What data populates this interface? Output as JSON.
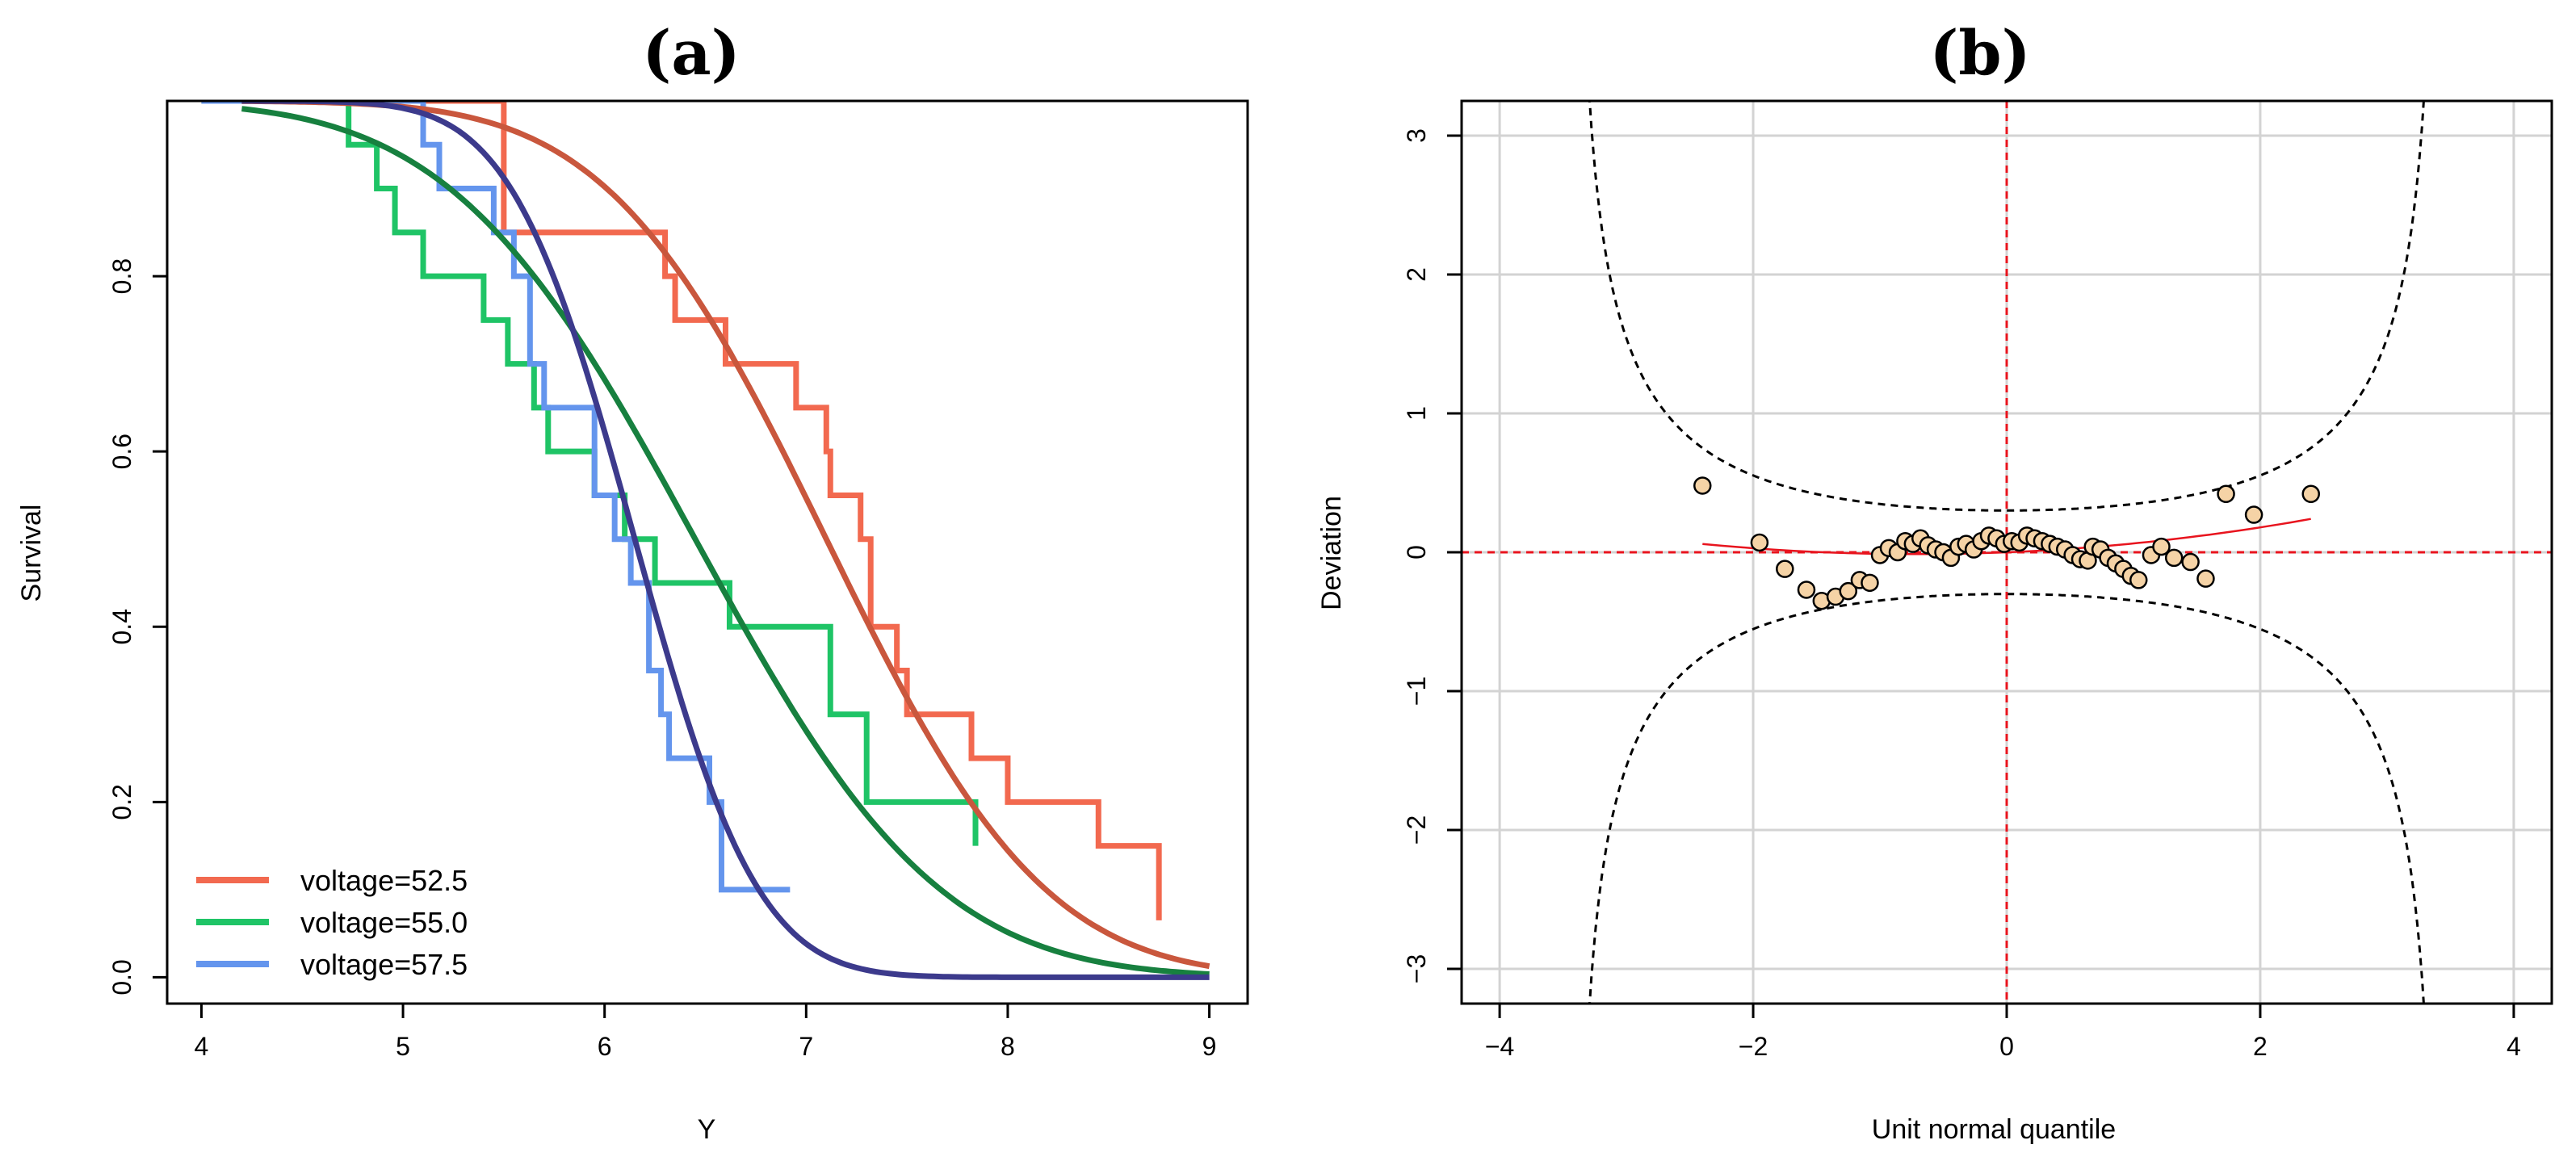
{
  "colors": {
    "v525_km": "#F2694F",
    "v525_fit": "#C9573D",
    "v550_km": "#1FC466",
    "v550_fit": "#17803F",
    "v575_km": "#6495ED",
    "v575_fit": "#3C3A8C",
    "grid": "#D3D3D3",
    "ref_line": "#E8141E",
    "point_fill": "#F5D3A6"
  },
  "chart_data": [
    {
      "type": "line",
      "panel": "(a)",
      "title": "(a)",
      "xlabel": "Y",
      "ylabel": "Survival",
      "xlim": [
        3.83,
        9.19
      ],
      "ylim": [
        -0.03,
        1.0
      ],
      "xticks": [
        4,
        5,
        6,
        7,
        8,
        9
      ],
      "yticks": [
        0.0,
        0.2,
        0.4,
        0.6,
        0.8
      ],
      "ytick_labels": [
        "0.0",
        "0.2",
        "0.4",
        "0.6",
        "0.8"
      ],
      "grid": false,
      "legend_position": "bottom-left",
      "series": [
        {
          "name": "voltage=52.5",
          "kind": "step",
          "color_key": "v525_km",
          "x": [
            4.0,
            5.5,
            5.5,
            6.3,
            6.35,
            6.6,
            6.95,
            7.1,
            7.12,
            7.27,
            7.32,
            7.45,
            7.5,
            7.82,
            8.0,
            8.45,
            8.75
          ],
          "y": [
            1.0,
            0.9,
            0.85,
            0.8,
            0.75,
            0.7,
            0.65,
            0.6,
            0.55,
            0.5,
            0.4,
            0.35,
            0.3,
            0.25,
            0.2,
            0.15,
            0.1
          ],
          "y_end": 0.065
        },
        {
          "name": "voltage=52.5 fit",
          "kind": "fit",
          "color_key": "v525_fit",
          "location": 7.1,
          "scale": 0.85
        },
        {
          "name": "voltage=55.0",
          "kind": "step",
          "color_key": "v550_km",
          "x": [
            4.0,
            4.73,
            4.87,
            4.96,
            5.1,
            5.4,
            5.52,
            5.65,
            5.72,
            5.95,
            6.1,
            6.25,
            6.62,
            7.12,
            7.3,
            7.84
          ],
          "y": [
            1.0,
            0.95,
            0.9,
            0.85,
            0.8,
            0.75,
            0.7,
            0.65,
            0.6,
            0.55,
            0.5,
            0.45,
            0.4,
            0.3,
            0.2,
            0.15
          ],
          "y_end": 0.15
        },
        {
          "name": "voltage=55.0 fit",
          "kind": "fit",
          "color_key": "v550_fit",
          "location": 6.45,
          "scale": 0.95
        },
        {
          "name": "voltage=57.5",
          "kind": "step",
          "color_key": "v575_km",
          "x": [
            4.0,
            5.1,
            5.18,
            5.45,
            5.55,
            5.63,
            5.7,
            5.95,
            6.05,
            6.13,
            6.22,
            6.28,
            6.32,
            6.52,
            6.58,
            6.92
          ],
          "y": [
            1.0,
            0.95,
            0.9,
            0.85,
            0.8,
            0.7,
            0.65,
            0.55,
            0.5,
            0.45,
            0.35,
            0.3,
            0.25,
            0.2,
            0.1,
            0.1
          ],
          "y_end": 0.1
        },
        {
          "name": "voltage=57.5 fit",
          "kind": "fit",
          "color_key": "v575_fit",
          "location": 6.15,
          "scale": 0.48
        }
      ],
      "legend": [
        {
          "label": "voltage=52.5",
          "color_key": "v525_km"
        },
        {
          "label": "voltage=55.0",
          "color_key": "v550_km"
        },
        {
          "label": "voltage=57.5",
          "color_key": "v575_km"
        }
      ]
    },
    {
      "type": "scatter",
      "panel": "(b)",
      "title": "(b)",
      "xlabel": "Unit normal quantile",
      "ylabel": "Deviation",
      "xlim": [
        -4.3,
        4.3
      ],
      "ylim": [
        -3.25,
        3.25
      ],
      "xticks": [
        -4,
        -2,
        0,
        2,
        4
      ],
      "xtick_labels": [
        "−4",
        "−2",
        "0",
        "2",
        "4"
      ],
      "yticks": [
        -3,
        -2,
        -1,
        0,
        1,
        2,
        3
      ],
      "ytick_labels": [
        "−3",
        "−2",
        "−1",
        "0",
        "1",
        "2",
        "3"
      ],
      "grid": true,
      "reference_lines": {
        "x": 0,
        "y": 0,
        "style": "dashed",
        "color_key": "ref_line"
      },
      "confidence_band": {
        "style": "dashed",
        "center_half_width": 0.31,
        "color": "#000000"
      },
      "trend_line": {
        "x": [
          -2.4,
          0.0,
          2.4
        ],
        "y": [
          0.06,
          0.0,
          0.24
        ],
        "color_key": "ref_line"
      },
      "points": [
        {
          "x": -2.4,
          "y": 0.48
        },
        {
          "x": -1.95,
          "y": 0.07
        },
        {
          "x": -1.75,
          "y": -0.12
        },
        {
          "x": -1.58,
          "y": -0.27
        },
        {
          "x": -1.46,
          "y": -0.35
        },
        {
          "x": -1.35,
          "y": -0.32
        },
        {
          "x": -1.25,
          "y": -0.28
        },
        {
          "x": -1.16,
          "y": -0.2
        },
        {
          "x": -1.08,
          "y": -0.22
        },
        {
          "x": -1.0,
          "y": -0.02
        },
        {
          "x": -0.93,
          "y": 0.03
        },
        {
          "x": -0.86,
          "y": 0.0
        },
        {
          "x": -0.8,
          "y": 0.08
        },
        {
          "x": -0.74,
          "y": 0.06
        },
        {
          "x": -0.68,
          "y": 0.1
        },
        {
          "x": -0.62,
          "y": 0.05
        },
        {
          "x": -0.56,
          "y": 0.02
        },
        {
          "x": -0.5,
          "y": 0.0
        },
        {
          "x": -0.44,
          "y": -0.04
        },
        {
          "x": -0.38,
          "y": 0.04
        },
        {
          "x": -0.32,
          "y": 0.06
        },
        {
          "x": -0.26,
          "y": 0.02
        },
        {
          "x": -0.2,
          "y": 0.08
        },
        {
          "x": -0.14,
          "y": 0.12
        },
        {
          "x": -0.08,
          "y": 0.1
        },
        {
          "x": -0.02,
          "y": 0.06
        },
        {
          "x": 0.04,
          "y": 0.08
        },
        {
          "x": 0.1,
          "y": 0.07
        },
        {
          "x": 0.16,
          "y": 0.12
        },
        {
          "x": 0.22,
          "y": 0.1
        },
        {
          "x": 0.28,
          "y": 0.08
        },
        {
          "x": 0.34,
          "y": 0.06
        },
        {
          "x": 0.4,
          "y": 0.04
        },
        {
          "x": 0.46,
          "y": 0.02
        },
        {
          "x": 0.52,
          "y": -0.02
        },
        {
          "x": 0.58,
          "y": -0.05
        },
        {
          "x": 0.64,
          "y": -0.06
        },
        {
          "x": 0.68,
          "y": 0.04
        },
        {
          "x": 0.74,
          "y": 0.02
        },
        {
          "x": 0.8,
          "y": -0.04
        },
        {
          "x": 0.86,
          "y": -0.08
        },
        {
          "x": 0.92,
          "y": -0.12
        },
        {
          "x": 0.98,
          "y": -0.17
        },
        {
          "x": 1.04,
          "y": -0.2
        },
        {
          "x": 1.14,
          "y": -0.02
        },
        {
          "x": 1.22,
          "y": 0.04
        },
        {
          "x": 1.32,
          "y": -0.04
        },
        {
          "x": 1.45,
          "y": -0.07
        },
        {
          "x": 1.57,
          "y": -0.19
        },
        {
          "x": 1.73,
          "y": 0.42
        },
        {
          "x": 1.95,
          "y": 0.27
        },
        {
          "x": 2.4,
          "y": 0.42
        }
      ]
    }
  ]
}
